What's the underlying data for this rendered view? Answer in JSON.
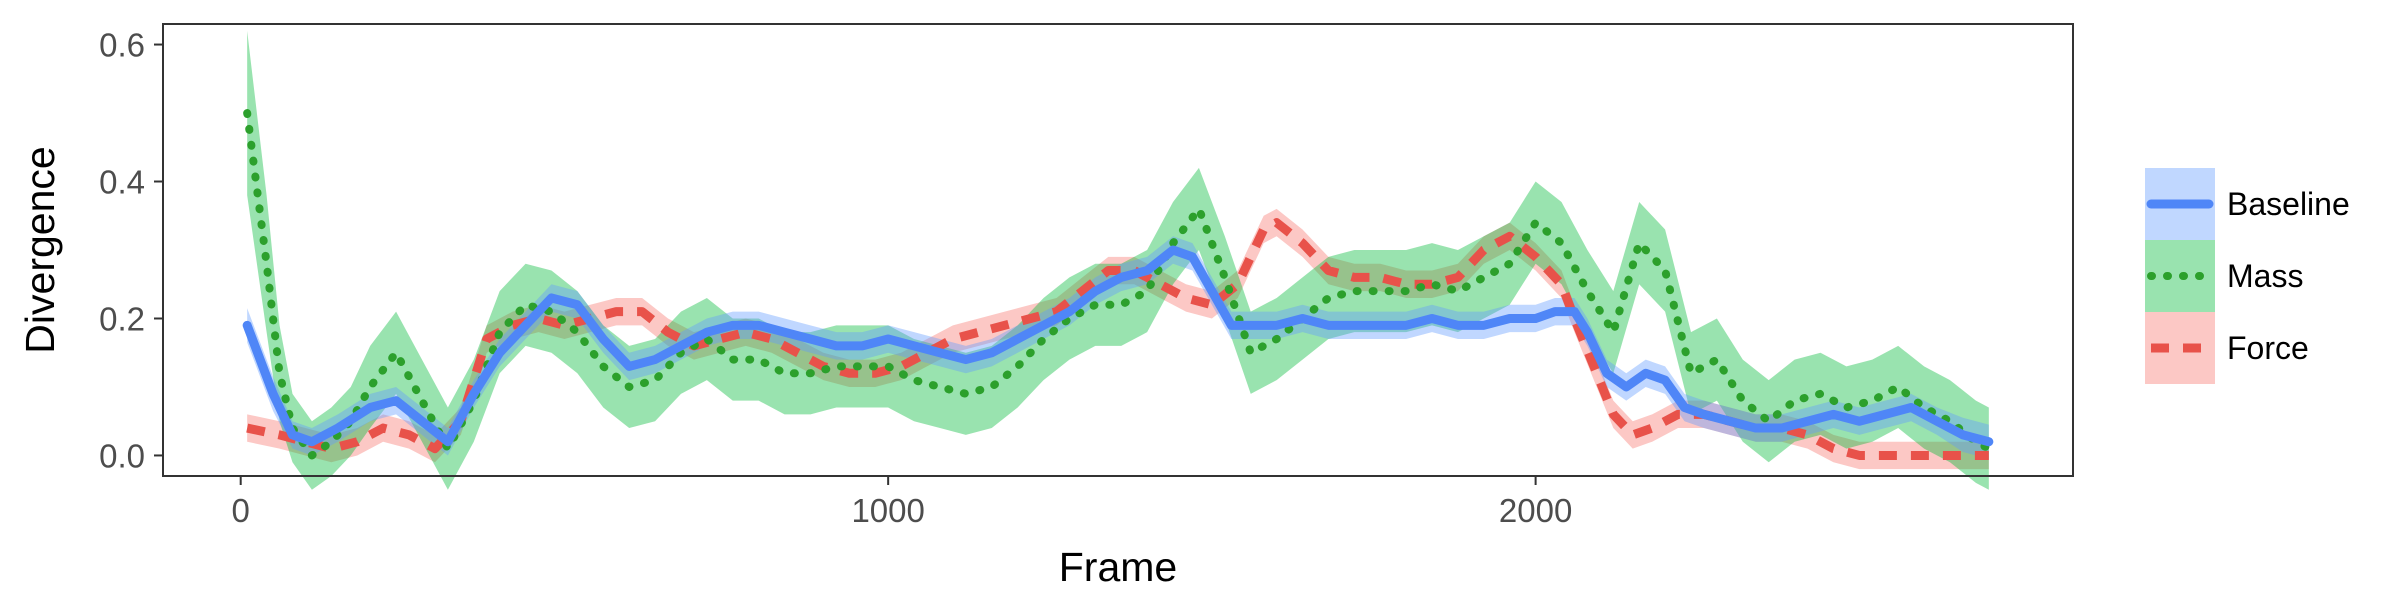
{
  "chart_data": {
    "type": "line",
    "title": "",
    "xlabel": "Frame",
    "ylabel": "Divergence",
    "xlim": [
      -120,
      2830
    ],
    "ylim": [
      -0.03,
      0.63
    ],
    "x_ticks": [
      0,
      1000,
      2000
    ],
    "x_tick_labels": [
      "0",
      "1000",
      "2000"
    ],
    "y_ticks": [
      0.0,
      0.2,
      0.4,
      0.6
    ],
    "y_tick_labels": [
      "0.0",
      "0.2",
      "0.4",
      "0.6"
    ],
    "grid": false,
    "legend_position": "right",
    "series": [
      {
        "name": "Baseline",
        "color": "#619CFF",
        "line_color": "#4F86F7",
        "linestyle": "solid",
        "x": [
          10,
          50,
          80,
          110,
          150,
          200,
          240,
          280,
          320,
          360,
          400,
          440,
          480,
          520,
          560,
          600,
          640,
          680,
          720,
          760,
          800,
          840,
          880,
          920,
          960,
          1000,
          1040,
          1080,
          1120,
          1160,
          1200,
          1240,
          1280,
          1320,
          1360,
          1400,
          1440,
          1470,
          1500,
          1530,
          1560,
          1600,
          1640,
          1680,
          1720,
          1760,
          1800,
          1840,
          1880,
          1920,
          1960,
          2000,
          2030,
          2060,
          2080,
          2110,
          2140,
          2170,
          2200,
          2230,
          2260,
          2300,
          2340,
          2380,
          2420,
          2460,
          2500,
          2540,
          2580,
          2620,
          2660,
          2700
        ],
        "y": [
          0.19,
          0.09,
          0.03,
          0.02,
          0.04,
          0.07,
          0.08,
          0.05,
          0.02,
          0.09,
          0.15,
          0.19,
          0.23,
          0.22,
          0.17,
          0.13,
          0.14,
          0.16,
          0.18,
          0.19,
          0.19,
          0.18,
          0.17,
          0.16,
          0.16,
          0.17,
          0.16,
          0.15,
          0.14,
          0.15,
          0.17,
          0.19,
          0.21,
          0.24,
          0.26,
          0.27,
          0.3,
          0.29,
          0.24,
          0.19,
          0.19,
          0.19,
          0.2,
          0.19,
          0.19,
          0.19,
          0.19,
          0.2,
          0.19,
          0.19,
          0.2,
          0.2,
          0.21,
          0.21,
          0.18,
          0.12,
          0.1,
          0.12,
          0.11,
          0.07,
          0.06,
          0.05,
          0.04,
          0.04,
          0.05,
          0.06,
          0.05,
          0.06,
          0.07,
          0.05,
          0.03,
          0.02
        ],
        "ci_halfwidth": [
          0.025,
          0.025,
          0.02,
          0.02,
          0.02,
          0.02,
          0.02,
          0.02,
          0.02,
          0.02,
          0.02,
          0.02,
          0.02,
          0.02,
          0.02,
          0.02,
          0.02,
          0.02,
          0.02,
          0.02,
          0.02,
          0.02,
          0.02,
          0.02,
          0.02,
          0.02,
          0.02,
          0.02,
          0.02,
          0.02,
          0.02,
          0.02,
          0.02,
          0.02,
          0.02,
          0.02,
          0.02,
          0.02,
          0.02,
          0.02,
          0.02,
          0.02,
          0.02,
          0.02,
          0.02,
          0.02,
          0.02,
          0.02,
          0.02,
          0.02,
          0.02,
          0.02,
          0.02,
          0.02,
          0.02,
          0.02,
          0.02,
          0.02,
          0.02,
          0.02,
          0.02,
          0.02,
          0.02,
          0.02,
          0.02,
          0.02,
          0.02,
          0.02,
          0.02,
          0.02,
          0.025,
          0.025
        ]
      },
      {
        "name": "Mass",
        "color": "#00BA38",
        "line_color": "#2CA02C",
        "linestyle": "dotted",
        "x": [
          10,
          40,
          60,
          80,
          110,
          140,
          170,
          200,
          240,
          280,
          320,
          360,
          400,
          440,
          480,
          520,
          560,
          600,
          640,
          680,
          720,
          760,
          800,
          840,
          880,
          920,
          960,
          1000,
          1040,
          1080,
          1120,
          1160,
          1200,
          1240,
          1280,
          1320,
          1360,
          1400,
          1440,
          1480,
          1520,
          1560,
          1600,
          1640,
          1680,
          1720,
          1760,
          1800,
          1840,
          1880,
          1920,
          1960,
          2000,
          2040,
          2080,
          2120,
          2160,
          2200,
          2240,
          2280,
          2320,
          2360,
          2400,
          2440,
          2480,
          2520,
          2560,
          2600,
          2640,
          2680,
          2700
        ],
        "y": [
          0.5,
          0.28,
          0.12,
          0.04,
          0.0,
          0.02,
          0.05,
          0.1,
          0.15,
          0.08,
          0.01,
          0.08,
          0.18,
          0.22,
          0.21,
          0.18,
          0.13,
          0.1,
          0.11,
          0.15,
          0.17,
          0.14,
          0.14,
          0.12,
          0.12,
          0.13,
          0.13,
          0.13,
          0.11,
          0.1,
          0.09,
          0.1,
          0.13,
          0.17,
          0.2,
          0.22,
          0.22,
          0.24,
          0.31,
          0.36,
          0.26,
          0.15,
          0.17,
          0.2,
          0.23,
          0.24,
          0.24,
          0.24,
          0.25,
          0.24,
          0.26,
          0.28,
          0.34,
          0.31,
          0.24,
          0.18,
          0.31,
          0.27,
          0.12,
          0.14,
          0.08,
          0.05,
          0.08,
          0.09,
          0.07,
          0.08,
          0.1,
          0.07,
          0.05,
          0.02,
          0.01
        ],
        "ci_halfwidth": [
          0.12,
          0.1,
          0.07,
          0.05,
          0.05,
          0.05,
          0.05,
          0.06,
          0.06,
          0.06,
          0.06,
          0.06,
          0.06,
          0.06,
          0.06,
          0.06,
          0.06,
          0.06,
          0.06,
          0.06,
          0.06,
          0.06,
          0.06,
          0.06,
          0.06,
          0.06,
          0.06,
          0.06,
          0.06,
          0.06,
          0.06,
          0.06,
          0.06,
          0.06,
          0.06,
          0.06,
          0.06,
          0.06,
          0.06,
          0.06,
          0.06,
          0.06,
          0.06,
          0.06,
          0.06,
          0.06,
          0.06,
          0.06,
          0.06,
          0.06,
          0.06,
          0.06,
          0.06,
          0.06,
          0.06,
          0.06,
          0.06,
          0.06,
          0.06,
          0.06,
          0.06,
          0.06,
          0.06,
          0.06,
          0.06,
          0.06,
          0.06,
          0.06,
          0.06,
          0.06,
          0.06
        ]
      },
      {
        "name": "Force",
        "color": "#F8766D",
        "line_color": "#E8524A",
        "linestyle": "dashed",
        "x": [
          10,
          60,
          100,
          140,
          180,
          220,
          260,
          300,
          340,
          380,
          420,
          460,
          500,
          540,
          580,
          620,
          660,
          700,
          740,
          780,
          820,
          860,
          900,
          940,
          980,
          1020,
          1060,
          1100,
          1140,
          1180,
          1220,
          1260,
          1300,
          1340,
          1380,
          1420,
          1460,
          1500,
          1540,
          1580,
          1600,
          1640,
          1680,
          1720,
          1760,
          1800,
          1840,
          1880,
          1920,
          1960,
          2000,
          2040,
          2060,
          2090,
          2120,
          2150,
          2180,
          2220,
          2260,
          2300,
          2340,
          2380,
          2420,
          2460,
          2500,
          2540,
          2580,
          2620,
          2660,
          2700
        ],
        "y": [
          0.04,
          0.03,
          0.02,
          0.01,
          0.02,
          0.04,
          0.03,
          0.01,
          0.05,
          0.17,
          0.19,
          0.2,
          0.19,
          0.2,
          0.21,
          0.21,
          0.18,
          0.16,
          0.17,
          0.18,
          0.17,
          0.15,
          0.13,
          0.12,
          0.12,
          0.13,
          0.15,
          0.17,
          0.18,
          0.19,
          0.2,
          0.21,
          0.24,
          0.27,
          0.27,
          0.25,
          0.23,
          0.22,
          0.25,
          0.33,
          0.34,
          0.31,
          0.27,
          0.26,
          0.26,
          0.25,
          0.25,
          0.26,
          0.3,
          0.32,
          0.29,
          0.25,
          0.2,
          0.13,
          0.06,
          0.03,
          0.04,
          0.06,
          0.06,
          0.05,
          0.04,
          0.04,
          0.03,
          0.01,
          0.0,
          0.0,
          0.0,
          0.0,
          0.0,
          0.0
        ],
        "ci_halfwidth": [
          0.02,
          0.02,
          0.02,
          0.02,
          0.02,
          0.02,
          0.02,
          0.02,
          0.02,
          0.02,
          0.02,
          0.02,
          0.02,
          0.02,
          0.02,
          0.02,
          0.02,
          0.02,
          0.02,
          0.02,
          0.02,
          0.02,
          0.02,
          0.02,
          0.02,
          0.02,
          0.02,
          0.02,
          0.02,
          0.02,
          0.02,
          0.02,
          0.02,
          0.02,
          0.02,
          0.02,
          0.02,
          0.02,
          0.02,
          0.02,
          0.02,
          0.02,
          0.02,
          0.02,
          0.02,
          0.02,
          0.02,
          0.02,
          0.02,
          0.02,
          0.02,
          0.02,
          0.02,
          0.02,
          0.02,
          0.02,
          0.02,
          0.02,
          0.02,
          0.02,
          0.02,
          0.02,
          0.02,
          0.02,
          0.02,
          0.02,
          0.02,
          0.02,
          0.02,
          0.02
        ]
      }
    ]
  }
}
